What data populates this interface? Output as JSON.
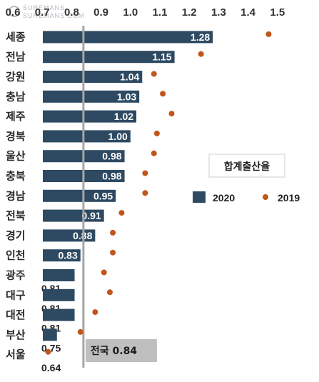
{
  "watermark": {
    "line1": "SUREMANS",
    "line2": "SUREMANS.COM"
  },
  "chart_data": {
    "type": "bar",
    "orientation": "horizontal",
    "xlim": [
      0.6,
      1.5
    ],
    "ticks": [
      "0.6",
      "0.7",
      "0.8",
      "0.9",
      "1.0",
      "1.1",
      "1.2",
      "1.3",
      "1.4",
      "1.5"
    ],
    "tick_values": [
      0.6,
      0.7,
      0.8,
      0.9,
      1.0,
      1.1,
      1.2,
      1.3,
      1.4,
      1.5
    ],
    "axis_position": "top",
    "grid": false,
    "legend_title": "합계출산율",
    "legend_position": "right",
    "categories": [
      "세종",
      "전남",
      "강원",
      "충남",
      "제주",
      "경북",
      "울산",
      "충북",
      "경남",
      "전북",
      "경기",
      "인천",
      "광주",
      "대구",
      "대전",
      "부산",
      "서울"
    ],
    "series": [
      {
        "name": "2020",
        "mark": "bar",
        "color": "#2e4a62",
        "values": [
          1.28,
          1.15,
          1.04,
          1.03,
          1.02,
          1.0,
          0.98,
          0.98,
          0.95,
          0.91,
          0.88,
          0.83,
          0.81,
          0.81,
          0.81,
          0.75,
          0.64
        ],
        "labels": [
          "1.28",
          "1.15",
          "1.04",
          "1.03",
          "1.02",
          "1.00",
          "0.98",
          "0.98",
          "0.95",
          "0.91",
          "0.88",
          "0.83",
          "0.81",
          "0.81",
          "0.81",
          "0.75",
          "0.64"
        ]
      },
      {
        "name": "2019",
        "mark": "dot",
        "color": "#c0561a",
        "values": [
          1.47,
          1.24,
          1.08,
          1.11,
          1.14,
          1.09,
          1.08,
          1.05,
          1.05,
          0.97,
          0.94,
          0.94,
          0.91,
          0.93,
          0.88,
          0.83,
          0.72
        ]
      }
    ],
    "reference_line": {
      "label": "전국 0.84",
      "value": 0.84,
      "color": "#a6a6a6"
    }
  }
}
